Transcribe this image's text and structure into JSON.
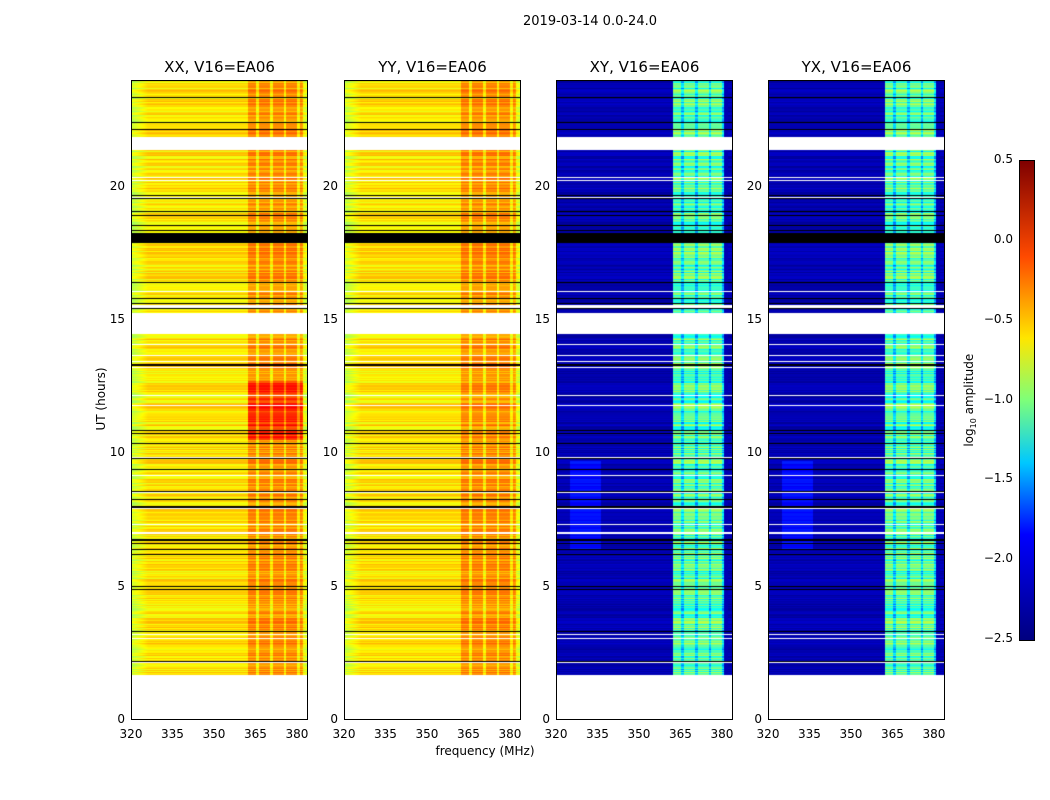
{
  "figure": {
    "suptitle": "2019-03-14 0.0-24.0",
    "xlabel": "frequency (MHz)",
    "ylabel": "UT (hours)"
  },
  "chart_data": {
    "type": "heatmap",
    "panels": [
      {
        "title": "XX, V16=EA06",
        "kind": "parallel"
      },
      {
        "title": "YY, V16=EA06",
        "kind": "parallel"
      },
      {
        "title": "XY, V16=EA06",
        "kind": "cross"
      },
      {
        "title": "YX, V16=EA06",
        "kind": "cross"
      }
    ],
    "x_range": [
      320,
      384
    ],
    "x_ticks": [
      "320",
      "335",
      "350",
      "365",
      "380"
    ],
    "x_tick_values": [
      320,
      335,
      350,
      365,
      380
    ],
    "y_range": [
      0,
      24
    ],
    "y_ticks": [
      "0",
      "5",
      "10",
      "15",
      "20"
    ],
    "y_tick_values": [
      0,
      5,
      10,
      15,
      20
    ],
    "data_start_hour": 1.7,
    "gaps_hours": [
      [
        14.5,
        15.3
      ],
      [
        21.4,
        21.9
      ]
    ],
    "bright_band_mhz": [
      362,
      382
    ],
    "colorbar": {
      "label": "log10 amplitude",
      "range": [
        -2.5,
        0.5
      ],
      "ticks": [
        "0.5",
        "0.0",
        "−0.5",
        "−1.0",
        "−1.5",
        "−2.0",
        "−2.5"
      ],
      "tick_values": [
        0.5,
        0,
        -0.5,
        -1,
        -1.5,
        -2,
        -2.5
      ],
      "colormap": "jet"
    }
  }
}
